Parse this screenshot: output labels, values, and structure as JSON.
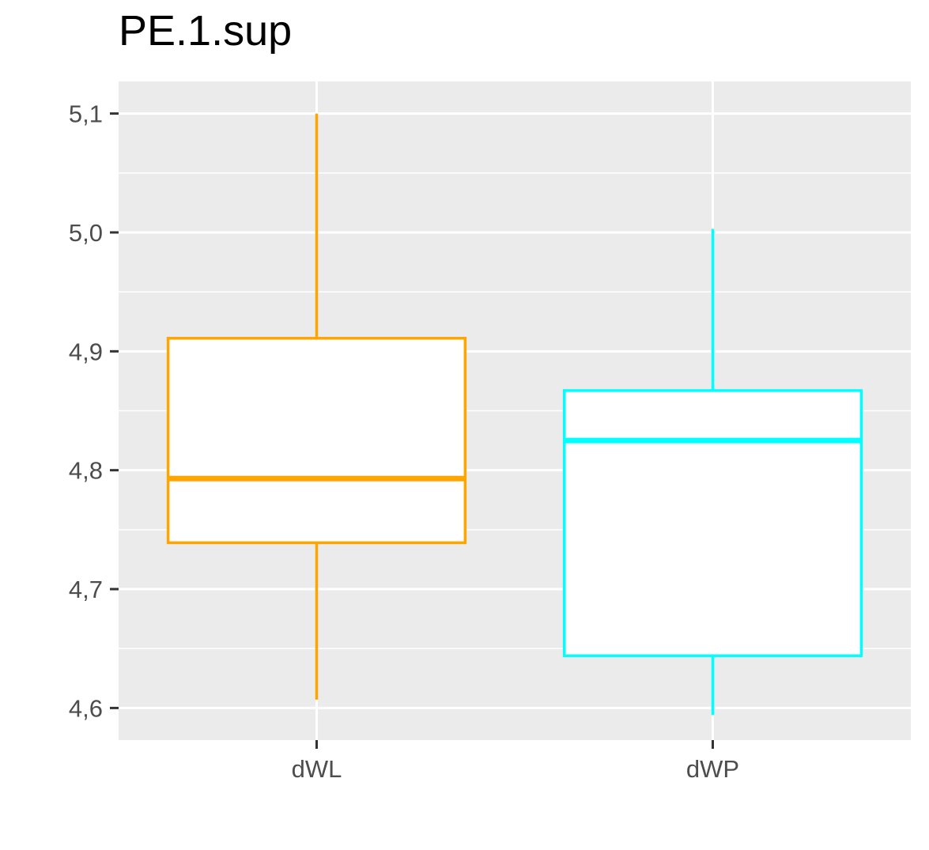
{
  "chart_data": {
    "type": "boxplot",
    "title": "PE.1.sup",
    "xlabel": "",
    "ylabel": "",
    "categories": [
      "dWL",
      "dWP"
    ],
    "ylim": [
      4.573,
      5.127
    ],
    "yticks": [
      4.6,
      4.7,
      4.8,
      4.9,
      5.0,
      5.1
    ],
    "ytick_labels": [
      "4,6",
      "4,7",
      "4,8",
      "4,9",
      "5,0",
      "5,1"
    ],
    "grid": true,
    "legend": "none",
    "series": [
      {
        "category": "dWL",
        "min": 4.607,
        "q1": 4.739,
        "median": 4.793,
        "q3": 4.911,
        "max": 5.1,
        "color": "#FFA500"
      },
      {
        "category": "dWP",
        "min": 4.594,
        "q1": 4.644,
        "median": 4.825,
        "q3": 4.867,
        "max": 5.003,
        "color": "#00FFFF"
      }
    ],
    "panel_background": "#EBEBEB",
    "grid_color": "#FFFFFF",
    "box_fill": "#FFFFFF"
  }
}
